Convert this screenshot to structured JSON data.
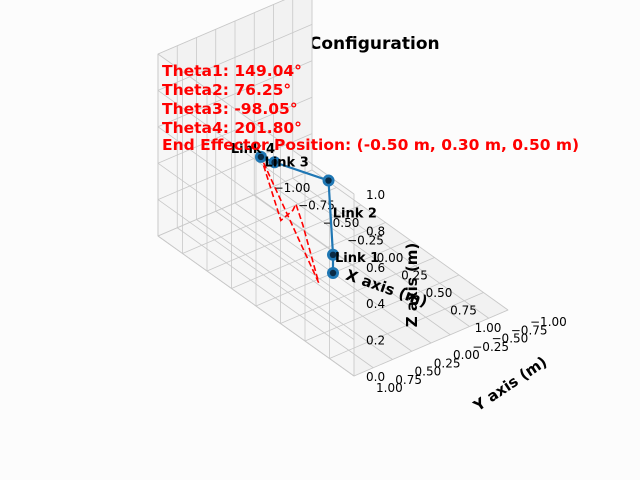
{
  "chart_data": {
    "type": "line3d",
    "title": "3D Robot Configuration",
    "annotations": [
      "Theta1: 149.04°",
      "Theta2: 76.25°",
      "Theta3: -98.05°",
      "Theta4: 201.80°",
      "End Effector Position: (-0.50 m, 0.30 m, 0.50 m)"
    ],
    "xlabel": "X axis (m)",
    "ylabel": "Y axis (m)",
    "zlabel": "Z axis (m)",
    "xlim": [
      -1.0,
      1.0
    ],
    "ylim": [
      -1.0,
      1.0
    ],
    "zlim": [
      0.0,
      1.0
    ],
    "x_ticks": [
      "−1.00",
      "−0.75",
      "−0.50",
      "−0.25",
      "0.00",
      "0.25",
      "0.50",
      "0.75",
      "1.00"
    ],
    "y_ticks": [
      "−1.00",
      "−0.75",
      "−0.50",
      "−0.25",
      "0.00",
      "0.25",
      "0.50",
      "0.75",
      "1.00"
    ],
    "z_ticks": [
      "0.0",
      "0.2",
      "0.4",
      "0.6",
      "0.8",
      "1.0"
    ],
    "grid": true,
    "arm": {
      "color": "#1f77b4",
      "joints": [
        {
          "x": 0.0,
          "y": 0.0,
          "z": 0.0
        },
        {
          "x": 0.0,
          "y": 0.0,
          "z": 0.1
        },
        {
          "x": -0.03,
          "y": 0.02,
          "z": 0.5
        },
        {
          "x": -0.4,
          "y": 0.25,
          "z": 0.5
        },
        {
          "x": -0.5,
          "y": 0.3,
          "z": 0.5
        }
      ],
      "link_labels": [
        "Link 1",
        "Link 2",
        "Link 3",
        "Link 4"
      ]
    },
    "path": {
      "color": "#ff0000",
      "style": "dashed",
      "points": [
        {
          "x": -0.5,
          "y": 0.3,
          "z": 0.5
        },
        {
          "x": -0.1,
          "y": 0.55,
          "z": 0.35
        },
        {
          "x": 0.1,
          "y": 0.65,
          "z": 0.5
        },
        {
          "x": 0.25,
          "y": 0.8,
          "z": 0.62
        },
        {
          "x": 0.4,
          "y": 0.9,
          "z": 0.58
        },
        {
          "x": 0.6,
          "y": 0.95,
          "z": 0.35
        },
        {
          "x": -0.5,
          "y": 0.3,
          "z": 0.5
        }
      ]
    }
  }
}
